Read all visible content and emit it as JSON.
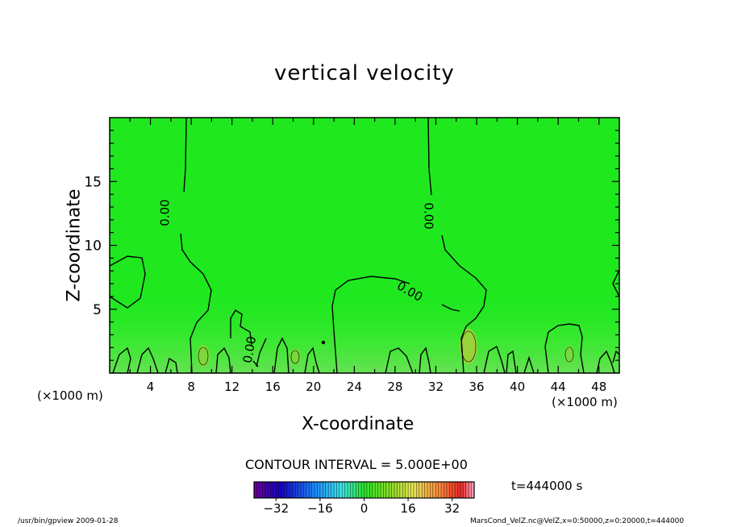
{
  "chart_data": {
    "type": "contour",
    "title": "vertical velocity",
    "xlabel": "X-coordinate",
    "ylabel": "Z-coordinate",
    "x_unit_left": "(×1000 m)",
    "x_unit_right": "(×1000 m)",
    "xlim": [
      0,
      50
    ],
    "ylim": [
      0,
      20
    ],
    "xticks": [
      "4",
      "8",
      "12",
      "16",
      "20",
      "24",
      "28",
      "32",
      "36",
      "40",
      "44",
      "48"
    ],
    "xtick_values": [
      4,
      8,
      12,
      16,
      20,
      24,
      28,
      32,
      36,
      40,
      44,
      48
    ],
    "yticks": [
      "5",
      "10",
      "15"
    ],
    "ytick_values": [
      5,
      10,
      15
    ],
    "contour_labels": [
      "0.00",
      "0.00",
      "0.00",
      "0.00"
    ],
    "contour_interval": "CONTOUR INTERVAL = 5.000E+00",
    "time_label": "t=444000 s",
    "colorbar_ticks": [
      "−32",
      "−16",
      "0",
      "16",
      "32"
    ],
    "colorbar_values": [
      -32,
      -16,
      0,
      16,
      32
    ],
    "colorbar_range": [
      -40,
      40
    ],
    "fill_color": "#1fe81f",
    "footer_left": "/usr/bin/gpview   2009-01-28",
    "footer_right": "MarsCond_VelZ.nc@VelZ,x=0:50000,z=0:20000,t=444000"
  }
}
